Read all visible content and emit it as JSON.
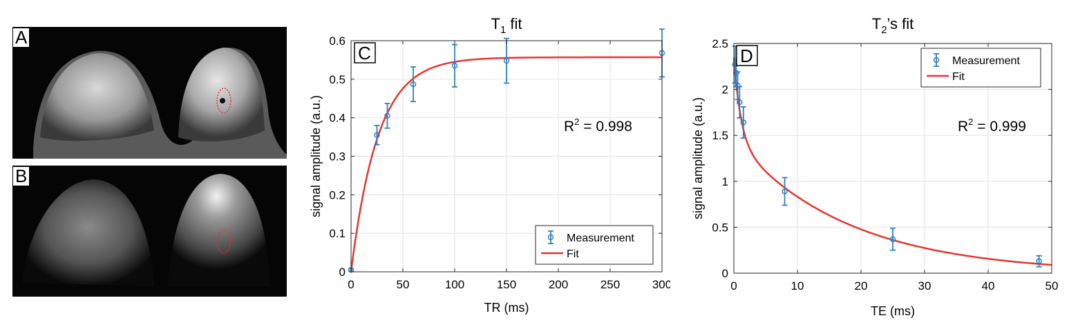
{
  "panels": {
    "a": {
      "letter": "A"
    },
    "b": {
      "letter": "B"
    },
    "c": {
      "letter": "C"
    },
    "d": {
      "letter": "D"
    }
  },
  "colors": {
    "measurement": "#2f7fc1",
    "fit": "#e8332e",
    "roi": "#e03030"
  },
  "chart_data": [
    {
      "type": "line",
      "title_main": "T",
      "title_sub": "1",
      "title_rest": " fit",
      "xlabel": "TR (ms)",
      "ylabel": "signal amplitude (a.u.)",
      "xlim": [
        0,
        300
      ],
      "ylim": [
        0,
        0.6
      ],
      "xticks": [
        0,
        50,
        100,
        150,
        200,
        250,
        300
      ],
      "yticks": [
        0,
        0.1,
        0.2,
        0.3,
        0.4,
        0.5,
        0.6
      ],
      "xtick_labels": [
        "0",
        "50",
        "100",
        "150",
        "200",
        "250",
        "300"
      ],
      "ytick_labels": [
        "0",
        "0.1",
        "0.2",
        "0.3",
        "0.4",
        "0.5",
        "0.6"
      ],
      "grid": true,
      "r2_label": "R",
      "r2_sup": "2",
      "r2_value": " = 0.998",
      "legend_position": "bottom-right",
      "legend": [
        "Measurement",
        "Fit"
      ],
      "series": [
        {
          "name": "Measurement",
          "kind": "errorbar",
          "x": [
            0,
            25,
            35,
            60,
            100,
            150,
            300
          ],
          "y": [
            0.005,
            0.355,
            0.405,
            0.487,
            0.535,
            0.548,
            0.568
          ],
          "err": [
            0.003,
            0.025,
            0.032,
            0.045,
            0.055,
            0.058,
            0.062
          ]
        },
        {
          "name": "Fit",
          "kind": "model",
          "model": "t1_recovery",
          "params": {
            "S0": 0.557,
            "T1": 26
          }
        }
      ]
    },
    {
      "type": "line",
      "title_main": "T",
      "title_sub": "2",
      "title_rest": "’s fit",
      "xlabel": "TE (ms)",
      "ylabel": "signal amplitude (a.u.)",
      "xlim": [
        0,
        50
      ],
      "ylim": [
        0,
        2.5
      ],
      "xticks": [
        0,
        10,
        20,
        30,
        40,
        50
      ],
      "yticks": [
        0,
        0.5,
        1,
        1.5,
        2,
        2.5
      ],
      "xtick_labels": [
        "0",
        "10",
        "20",
        "30",
        "40",
        "50"
      ],
      "ytick_labels": [
        "0",
        "0.5",
        "1",
        "1.5",
        "2",
        "2.5"
      ],
      "grid": true,
      "r2_label": "R",
      "r2_sup": "2",
      "r2_value": " = 0.999",
      "legend_position": "top-right",
      "legend": [
        "Measurement",
        "Fit"
      ],
      "series": [
        {
          "name": "Measurement",
          "kind": "errorbar",
          "x": [
            0.2,
            0.35,
            0.6,
            0.9,
            1.5,
            8,
            25,
            48
          ],
          "y": [
            2.27,
            2.18,
            2.04,
            1.86,
            1.64,
            0.89,
            0.37,
            0.13
          ],
          "err": [
            0.2,
            0.15,
            0.15,
            0.17,
            0.17,
            0.15,
            0.12,
            0.06
          ]
        },
        {
          "name": "Fit",
          "kind": "model",
          "model": "biexponential",
          "params": {
            "A1": 0.9,
            "T2a": 1.1,
            "A2": 1.45,
            "T2b": 18
          }
        }
      ]
    }
  ]
}
